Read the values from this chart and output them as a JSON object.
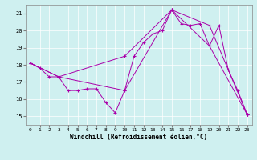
{
  "bg_color": "#cff0f0",
  "line_color": "#aa00aa",
  "xlabel": "Windchill (Refroidissement éolien,°C)",
  "xlim": [
    -0.5,
    23.5
  ],
  "ylim": [
    14.5,
    21.5
  ],
  "yticks": [
    15,
    16,
    17,
    18,
    19,
    20,
    21
  ],
  "xticks": [
    0,
    1,
    2,
    3,
    4,
    5,
    6,
    7,
    8,
    9,
    10,
    11,
    12,
    13,
    14,
    15,
    16,
    17,
    18,
    19,
    20,
    21,
    22,
    23
  ],
  "line1_x": [
    0,
    1,
    2,
    3,
    4,
    5,
    6,
    7,
    8,
    9,
    10,
    11,
    12,
    13,
    14,
    15,
    16,
    17,
    18,
    19,
    20,
    21,
    22,
    23
  ],
  "line1_y": [
    18.1,
    17.8,
    17.3,
    17.3,
    16.5,
    16.5,
    16.6,
    16.6,
    15.8,
    15.2,
    16.5,
    18.5,
    19.3,
    19.8,
    20.0,
    21.2,
    20.4,
    20.3,
    20.4,
    19.1,
    20.3,
    17.7,
    16.5,
    15.1
  ],
  "line2_x": [
    0,
    3,
    10,
    15,
    19,
    23
  ],
  "line2_y": [
    18.1,
    17.3,
    18.5,
    21.2,
    20.3,
    15.1
  ],
  "line3_x": [
    0,
    3,
    10,
    15,
    19,
    23
  ],
  "line3_y": [
    18.1,
    17.3,
    16.5,
    21.2,
    19.1,
    15.1
  ]
}
